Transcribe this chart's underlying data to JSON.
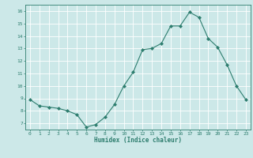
{
  "x": [
    0,
    1,
    2,
    3,
    4,
    5,
    6,
    7,
    8,
    9,
    10,
    11,
    12,
    13,
    14,
    15,
    16,
    17,
    18,
    19,
    20,
    21,
    22,
    23
  ],
  "y": [
    8.9,
    8.4,
    8.3,
    8.2,
    8.0,
    7.7,
    6.7,
    6.9,
    7.5,
    8.5,
    10.0,
    11.1,
    12.9,
    13.0,
    13.4,
    14.8,
    14.8,
    15.9,
    15.5,
    13.8,
    13.1,
    11.7,
    10.0,
    8.9
  ],
  "xlabel": "Humidex (Indice chaleur)",
  "ylim": [
    6.5,
    16.5
  ],
  "xlim": [
    -0.5,
    23.5
  ],
  "yticks": [
    7,
    8,
    9,
    10,
    11,
    12,
    13,
    14,
    15,
    16
  ],
  "xticks": [
    0,
    1,
    2,
    3,
    4,
    5,
    6,
    7,
    8,
    9,
    10,
    11,
    12,
    13,
    14,
    15,
    16,
    17,
    18,
    19,
    20,
    21,
    22,
    23
  ],
  "line_color": "#2d7d6e",
  "bg_color": "#cce8e8",
  "grid_color": "#ffffff",
  "label_color": "#2d7d6e",
  "tick_color": "#2d7d6e",
  "font_family": "monospace"
}
